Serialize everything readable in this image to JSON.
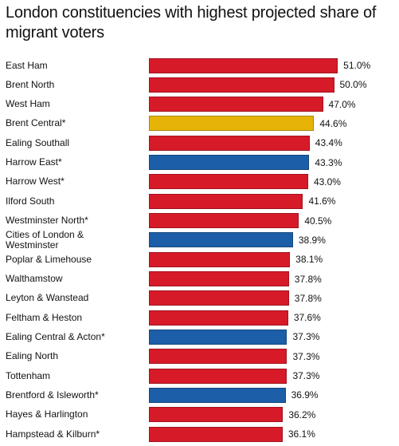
{
  "chart_data": {
    "type": "bar",
    "orientation": "horizontal",
    "title": "London constituencies with highest projected share of migrant voters",
    "categories": [
      "East Ham",
      "Brent North",
      "West Ham",
      "Brent Central*",
      "Ealing Southall",
      "Harrow East*",
      "Harrow West*",
      "Ilford South",
      "Westminster North*",
      "Cities of London & Westminster",
      "Poplar & Limehouse",
      "Walthamstow",
      "Leyton & Wanstead",
      "Feltham & Heston",
      "Ealing Central & Acton*",
      "Ealing North",
      "Tottenham",
      "Brentford & Isleworth*",
      "Hayes & Harlington",
      "Hampstead & Kilburn*"
    ],
    "values": [
      51.0,
      50.0,
      47.0,
      44.6,
      43.4,
      43.3,
      43.0,
      41.6,
      40.5,
      38.9,
      38.1,
      37.8,
      37.8,
      37.6,
      37.3,
      37.3,
      37.3,
      36.9,
      36.2,
      36.1
    ],
    "value_labels": [
      "51.0%",
      "50.0%",
      "47.0%",
      "44.6%",
      "43.4%",
      "43.3%",
      "43.0%",
      "41.6%",
      "40.5%",
      "38.9%",
      "38.1%",
      "37.8%",
      "37.8%",
      "37.6%",
      "37.3%",
      "37.3%",
      "37.3%",
      "36.9%",
      "36.2%",
      "36.1%"
    ],
    "colors": [
      "#d71a28",
      "#d71a28",
      "#d71a28",
      "#e5b406",
      "#d71a28",
      "#1c5fa8",
      "#d71a28",
      "#d71a28",
      "#d71a28",
      "#1c5fa8",
      "#d71a28",
      "#d71a28",
      "#d71a28",
      "#d71a28",
      "#1c5fa8",
      "#d71a28",
      "#d71a28",
      "#1c5fa8",
      "#d71a28",
      "#d71a28"
    ]
  }
}
